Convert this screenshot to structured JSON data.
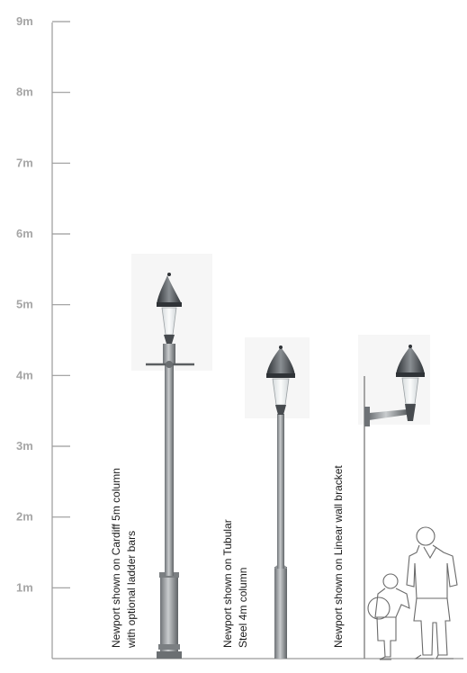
{
  "scale": {
    "unit": "m",
    "labels": [
      "1m",
      "2m",
      "3m",
      "4m",
      "5m",
      "6m",
      "7m",
      "8m",
      "9m"
    ],
    "min": 0,
    "max": 9
  },
  "captions": {
    "cardiff": {
      "line1": "Newport shown on Cardiff 5m column",
      "line2": "with optional ladder bars"
    },
    "tubular": {
      "line1": "Newport shown on Tubular",
      "line2": "Steel 4m column"
    },
    "wall": {
      "line1": "Newport shown on Linear wall bracket"
    }
  },
  "colors": {
    "axis": "#9a9a9a",
    "column": "#8f9396",
    "lantern": "#3d4246",
    "glass": "#eef1f2",
    "figure": "#666666",
    "shade": "#f4f4f4"
  }
}
